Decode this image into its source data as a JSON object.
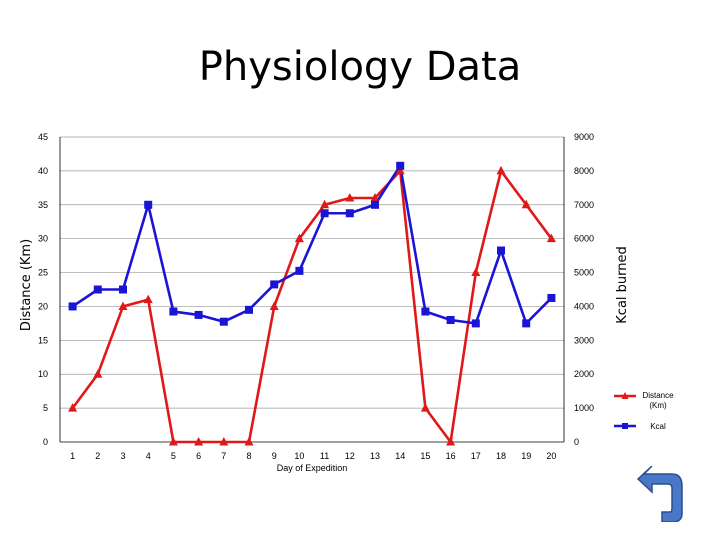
{
  "slide": {
    "title": "Physiology Data"
  },
  "colors": {
    "distance": "#e01818",
    "kcal": "#1a14d6",
    "button": "#4a78c8"
  },
  "nav": {
    "back_icon": "return-arrow-icon"
  },
  "chart_data": {
    "type": "line",
    "title": "",
    "xlabel": "Day of Expedition",
    "ylabel": "Distance (Km)",
    "y2label": "Kcal burned",
    "x": [
      1,
      2,
      3,
      4,
      5,
      6,
      7,
      8,
      9,
      10,
      11,
      12,
      13,
      14,
      15,
      16,
      17,
      18,
      19,
      20
    ],
    "ylim": [
      0,
      45
    ],
    "y2lim": [
      0,
      9000
    ],
    "yticks": [
      0,
      5,
      10,
      15,
      20,
      25,
      30,
      35,
      40,
      45
    ],
    "y2ticks": [
      0,
      1000,
      2000,
      3000,
      4000,
      5000,
      6000,
      7000,
      8000,
      9000
    ],
    "grid": "horizontal",
    "legend_position": "right",
    "series": [
      {
        "name": "Distance (Km)",
        "axis": "left",
        "marker": "triangle",
        "values": [
          5,
          10,
          20,
          21,
          0,
          0,
          0,
          0,
          20,
          30,
          35,
          36,
          36,
          40,
          5,
          0,
          25,
          40,
          35,
          30
        ]
      },
      {
        "name": "Kcal",
        "axis": "right",
        "marker": "square",
        "values": [
          4000,
          4500,
          4500,
          7000,
          3850,
          3750,
          3550,
          3900,
          4650,
          5050,
          6750,
          6750,
          7000,
          8150,
          3850,
          3600,
          3500,
          5650,
          3500,
          4250
        ]
      }
    ]
  }
}
